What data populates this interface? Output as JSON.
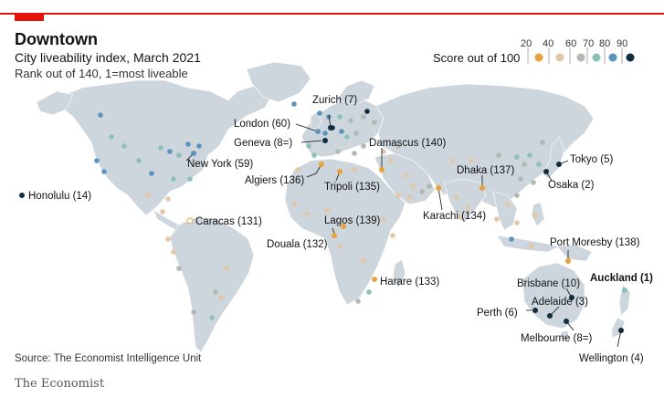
{
  "header": {
    "title": "Downtown",
    "subtitle": "City liveability index, March 2021",
    "subtitle2": "Rank out of 140, 1=most liveable"
  },
  "legend": {
    "label": "Score out of 100",
    "ticks": [
      "20",
      "40",
      "60",
      "70",
      "80",
      "90"
    ],
    "colors": [
      "#e8a33d",
      "#e2c7a8",
      "#b3b9b1",
      "#8cc1b7",
      "#5b95be",
      "#0f2d3e"
    ]
  },
  "labels": {
    "honolulu": "Honolulu (14)",
    "new_york": "New York (59)",
    "caracas": "Caracas (131)",
    "london": "London (60)",
    "zurich": "Zurich (7)",
    "geneva": "Geneva (8=)",
    "algiers": "Algiers (136)",
    "tripoli": "Tripoli (135)",
    "damascus": "Damascus (140)",
    "lagos": "Lagos (139)",
    "douala": "Douala (132)",
    "harare": "Harare (133)",
    "karachi": "Karachi (134)",
    "dhaka": "Dhaka (137)",
    "tokyo": "Tokyo (5)",
    "osaka": "Osaka (2)",
    "port_moresby": "Port Moresby (138)",
    "brisbane": "Brisbane (10)",
    "auckland": "Auckland (1)",
    "adelaide": "Adelaide (3)",
    "perth": "Perth (6)",
    "melbourne": "Melbourne (8=)",
    "wellington": "Wellington (4)"
  },
  "footer": {
    "source": "Source: The Economist Intelligence Unit",
    "brand": "The Economist"
  },
  "colors": {
    "land": "#cdd6dc",
    "accent_red": "#e3120b"
  }
}
